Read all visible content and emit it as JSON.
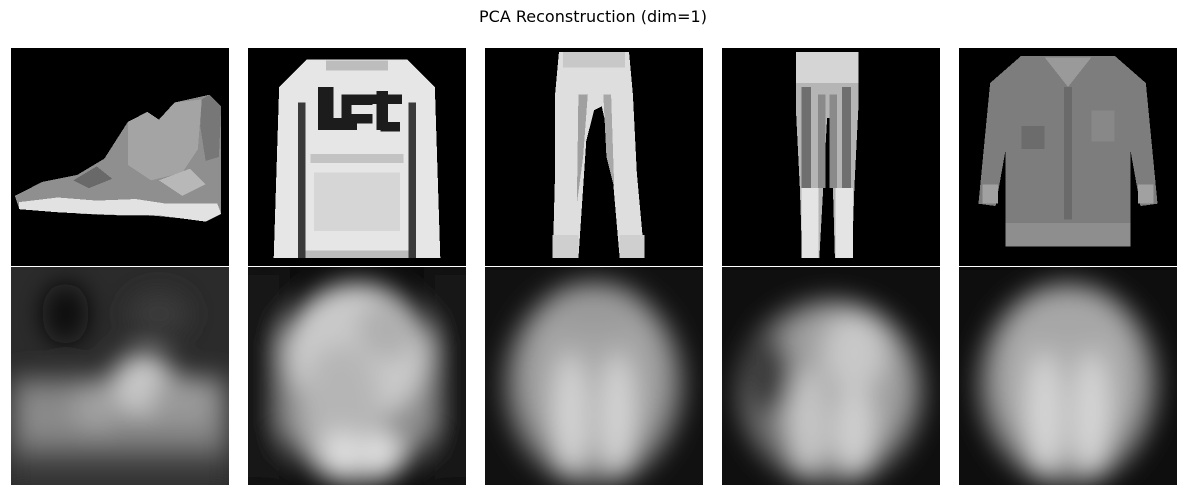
{
  "figure": {
    "title": "PCA Reconstruction (dim=1)"
  },
  "rows": [
    {
      "name": "original",
      "items": [
        {
          "name": "original-ankle-boot-image"
        },
        {
          "name": "original-pullover-image"
        },
        {
          "name": "original-trouser-image"
        },
        {
          "name": "original-trouser-image"
        },
        {
          "name": "original-shirt-image"
        }
      ]
    },
    {
      "name": "reconstruction",
      "items": [
        {
          "name": "reconstruction-image"
        },
        {
          "name": "reconstruction-image"
        },
        {
          "name": "reconstruction-image"
        },
        {
          "name": "reconstruction-image"
        },
        {
          "name": "reconstruction-image"
        }
      ]
    }
  ],
  "colors": {
    "background": "#000000",
    "page": "#ffffff"
  }
}
